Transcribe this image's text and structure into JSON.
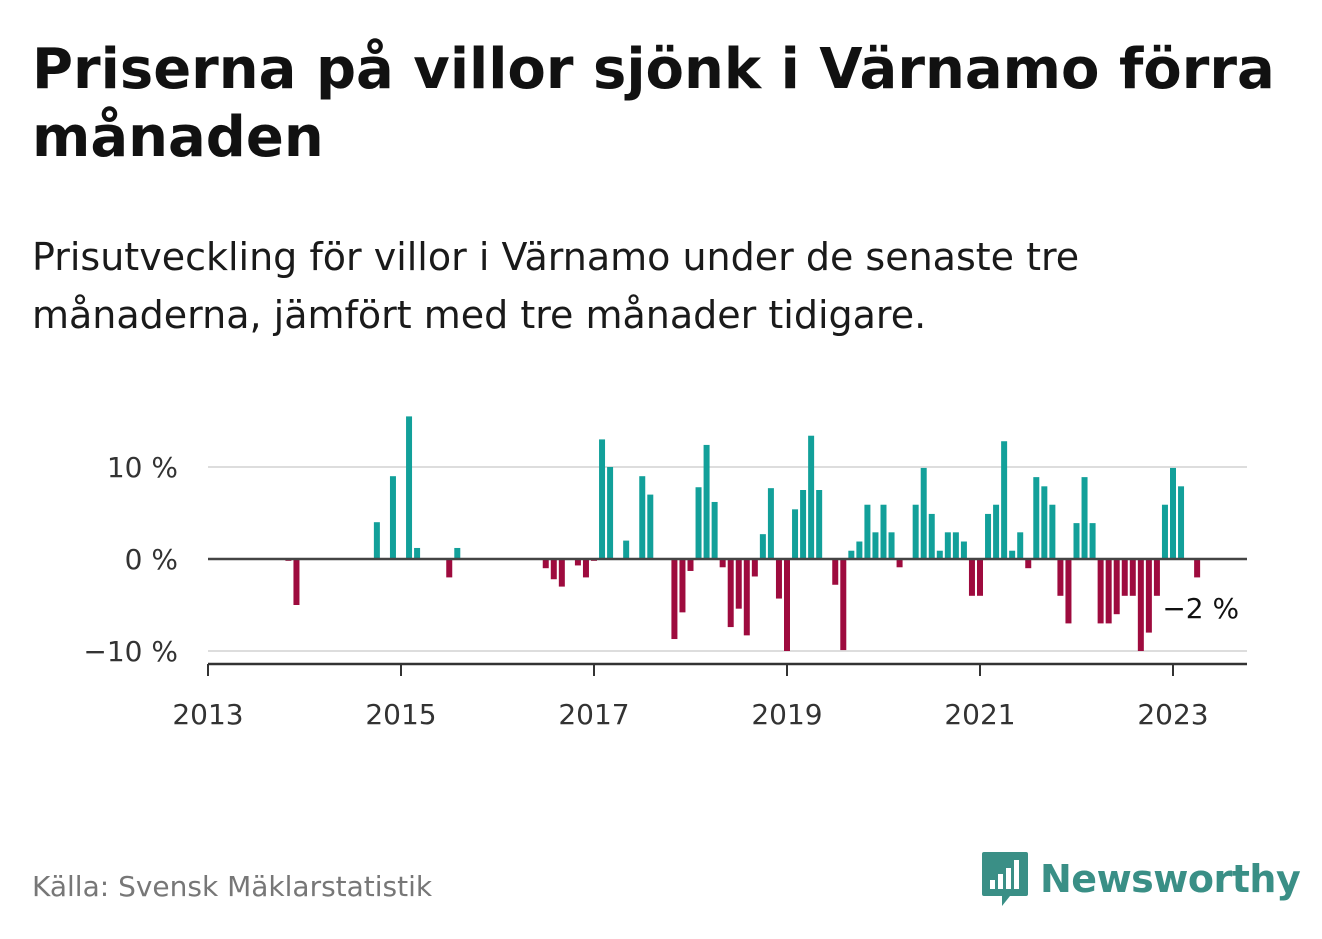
{
  "title": "Priserna på villor sjönk i Värnamo förra månaden",
  "subtitle": "Prisutveckling för villor i Värnamo under de senaste tre månaderna, jämfört med tre månader tidigare.",
  "source": "Källa: Svensk Mäklarstatistik",
  "brand": {
    "name": "Newsworthy",
    "icon": "newsworthy-logo-icon",
    "color": "#3a8f86"
  },
  "colors": {
    "positive": "#12a09a",
    "negative": "#9e0b3e",
    "zero_line": "#444444",
    "grid": "#dddddd"
  },
  "chart_data": {
    "type": "bar",
    "title": "Priserna på villor sjönk i Värnamo förra månaden",
    "subtitle": "Prisutveckling för villor i Värnamo under de senaste tre månaderna, jämfört med tre månader tidigare.",
    "xlabel": "",
    "ylabel": "",
    "unit": "%",
    "x_range": [
      "2013-01",
      "2023-10"
    ],
    "ylim": [
      -11,
      16
    ],
    "y_ticks": [
      {
        "value": 10,
        "label": "10 %"
      },
      {
        "value": 0,
        "label": "0 %"
      },
      {
        "value": -10,
        "label": "−10 %"
      }
    ],
    "x_ticks": [
      "2013",
      "2015",
      "2017",
      "2019",
      "2021",
      "2023"
    ],
    "grid": true,
    "series": [
      {
        "values": [
          {
            "month": "2013-11",
            "value": -0.2
          },
          {
            "month": "2013-12",
            "value": -5
          },
          {
            "month": "2014-10",
            "value": 4
          },
          {
            "month": "2014-12",
            "value": 9
          },
          {
            "month": "2015-02",
            "value": 15.5
          },
          {
            "month": "2015-03",
            "value": 1.2
          },
          {
            "month": "2015-07",
            "value": -2
          },
          {
            "month": "2015-08",
            "value": 1.2
          },
          {
            "month": "2016-07",
            "value": -1
          },
          {
            "month": "2016-08",
            "value": -2.2
          },
          {
            "month": "2016-09",
            "value": -3
          },
          {
            "month": "2016-10",
            "value": -0.1
          },
          {
            "month": "2016-11",
            "value": -0.7
          },
          {
            "month": "2016-12",
            "value": -2
          },
          {
            "month": "2017-01",
            "value": -0.2
          },
          {
            "month": "2017-02",
            "value": 13
          },
          {
            "month": "2017-03",
            "value": 10
          },
          {
            "month": "2017-05",
            "value": 2
          },
          {
            "month": "2017-07",
            "value": 9
          },
          {
            "month": "2017-08",
            "value": 7
          },
          {
            "month": "2017-11",
            "value": -8.7
          },
          {
            "month": "2017-12",
            "value": -5.8
          },
          {
            "month": "2018-01",
            "value": -1.3
          },
          {
            "month": "2018-02",
            "value": 7.8
          },
          {
            "month": "2018-03",
            "value": 12.4
          },
          {
            "month": "2018-04",
            "value": 6.2
          },
          {
            "month": "2018-05",
            "value": -0.9
          },
          {
            "month": "2018-06",
            "value": -7.4
          },
          {
            "month": "2018-07",
            "value": -5.4
          },
          {
            "month": "2018-08",
            "value": -8.3
          },
          {
            "month": "2018-09",
            "value": -1.9
          },
          {
            "month": "2018-10",
            "value": 2.7
          },
          {
            "month": "2018-11",
            "value": 7.7
          },
          {
            "month": "2018-12",
            "value": -4.3
          },
          {
            "month": "2019-01",
            "value": -10
          },
          {
            "month": "2019-02",
            "value": 5.4
          },
          {
            "month": "2019-03",
            "value": 7.5
          },
          {
            "month": "2019-04",
            "value": 13.4
          },
          {
            "month": "2019-05",
            "value": 7.5
          },
          {
            "month": "2019-07",
            "value": -2.8
          },
          {
            "month": "2019-08",
            "value": -9.9
          },
          {
            "month": "2019-09",
            "value": 0.9
          },
          {
            "month": "2019-10",
            "value": 1.9
          },
          {
            "month": "2019-11",
            "value": 5.9
          },
          {
            "month": "2019-12",
            "value": 2.9
          },
          {
            "month": "2020-01",
            "value": 5.9
          },
          {
            "month": "2020-02",
            "value": 2.9
          },
          {
            "month": "2020-03",
            "value": -0.9
          },
          {
            "month": "2020-05",
            "value": 5.9
          },
          {
            "month": "2020-06",
            "value": 9.9
          },
          {
            "month": "2020-07",
            "value": 4.9
          },
          {
            "month": "2020-08",
            "value": 0.9
          },
          {
            "month": "2020-09",
            "value": 2.9
          },
          {
            "month": "2020-10",
            "value": 2.9
          },
          {
            "month": "2020-11",
            "value": 1.9
          },
          {
            "month": "2020-12",
            "value": -4
          },
          {
            "month": "2021-01",
            "value": -4
          },
          {
            "month": "2021-02",
            "value": 4.9
          },
          {
            "month": "2021-03",
            "value": 5.9
          },
          {
            "month": "2021-04",
            "value": 12.8
          },
          {
            "month": "2021-05",
            "value": 0.9
          },
          {
            "month": "2021-06",
            "value": 2.9
          },
          {
            "month": "2021-07",
            "value": -1
          },
          {
            "month": "2021-08",
            "value": 8.9
          },
          {
            "month": "2021-09",
            "value": 7.9
          },
          {
            "month": "2021-10",
            "value": 5.9
          },
          {
            "month": "2021-11",
            "value": -4
          },
          {
            "month": "2021-12",
            "value": -7
          },
          {
            "month": "2022-01",
            "value": 3.9
          },
          {
            "month": "2022-02",
            "value": 8.9
          },
          {
            "month": "2022-03",
            "value": 3.9
          },
          {
            "month": "2022-04",
            "value": -7
          },
          {
            "month": "2022-05",
            "value": -7
          },
          {
            "month": "2022-06",
            "value": -6
          },
          {
            "month": "2022-07",
            "value": -4
          },
          {
            "month": "2022-08",
            "value": -4
          },
          {
            "month": "2022-09",
            "value": -10
          },
          {
            "month": "2022-10",
            "value": -8
          },
          {
            "month": "2022-11",
            "value": -4
          },
          {
            "month": "2022-12",
            "value": 5.9
          },
          {
            "month": "2023-01",
            "value": 9.9
          },
          {
            "month": "2023-02",
            "value": 7.9
          },
          {
            "month": "2023-04",
            "value": -2
          }
        ]
      }
    ],
    "annotations": [
      {
        "month": "2023-04",
        "label": "−2 %"
      }
    ]
  }
}
